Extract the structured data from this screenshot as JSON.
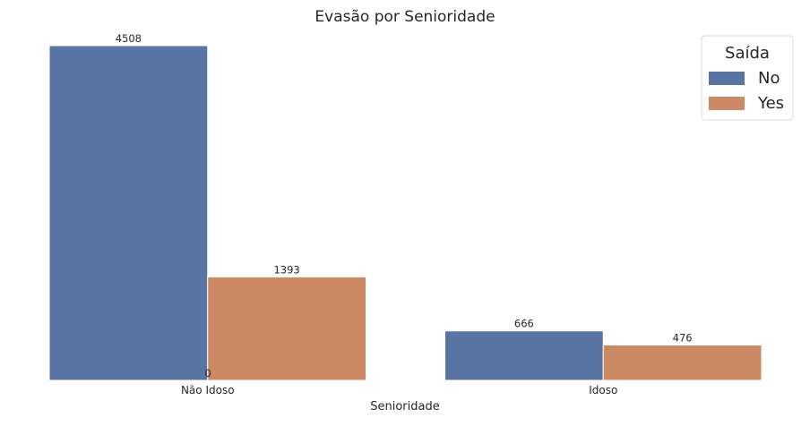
{
  "chart_data": {
    "type": "bar",
    "title": "Evasão por Senioridade",
    "xlabel": "Senioridade",
    "ylabel": "",
    "categories": [
      "Não Idoso",
      "Idoso"
    ],
    "series": [
      {
        "name": "No",
        "values": [
          4508,
          666
        ],
        "color": "#5975a4"
      },
      {
        "name": "Yes",
        "values": [
          1393,
          476
        ],
        "color": "#cc8963"
      }
    ],
    "extra_labels": [
      "0"
    ],
    "ylim": [
      0,
      4508
    ],
    "grid": false,
    "legend": {
      "title": "Saída",
      "position": "top-right",
      "entries": [
        "No",
        "Yes"
      ]
    }
  }
}
